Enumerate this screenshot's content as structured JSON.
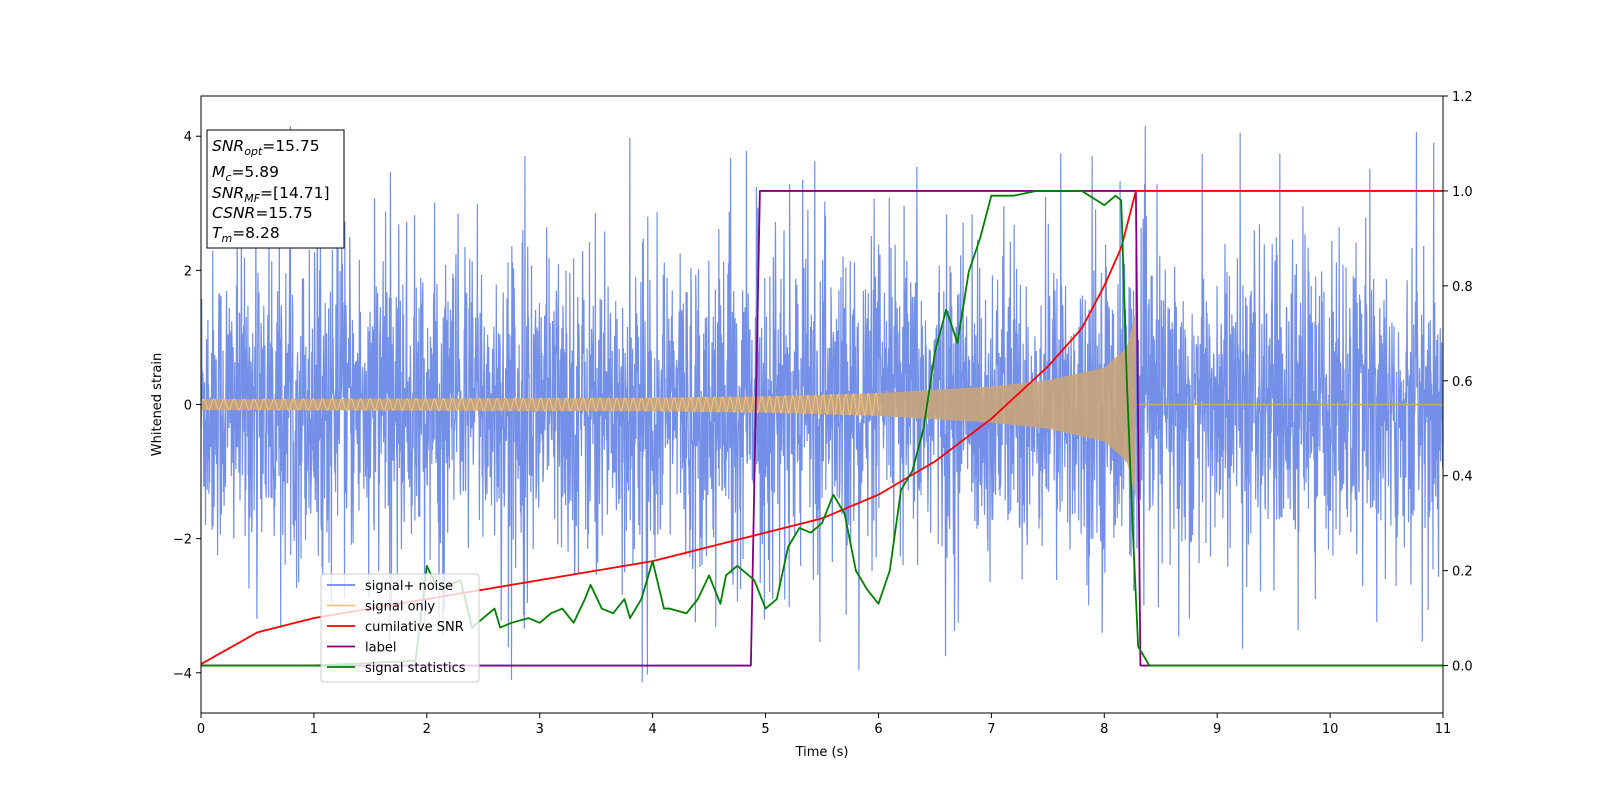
{
  "chart_data": {
    "type": "line",
    "xlabel": "Time (s)",
    "ylabel": "Whitened strain",
    "xlim": [
      0,
      11
    ],
    "ylim_left": [
      -4.6,
      4.6
    ],
    "ylim_right": [
      -0.1,
      1.2
    ],
    "x_ticks": [
      "0",
      "1",
      "2",
      "3",
      "4",
      "5",
      "6",
      "7",
      "8",
      "9",
      "10",
      "11"
    ],
    "y_left_ticks": [
      "−4",
      "−2",
      "0",
      "2",
      "4"
    ],
    "y_right_ticks": [
      "0.0",
      "0.2",
      "0.4",
      "0.6",
      "0.8",
      "1.0",
      "1.2"
    ],
    "grid": false,
    "legend_position": "lower-left",
    "info_box": {
      "snr_opt": {
        "base": "SNR",
        "sub": "opt",
        "value": "=15.75"
      },
      "mc": {
        "base": "M",
        "sub": "c",
        "value": "=5.89"
      },
      "snr_mf": {
        "base": "SNR",
        "sub": "MF",
        "value": "=[14.71]"
      },
      "csnr": {
        "base": "CSNR",
        "sub": "",
        "value": "=15.75"
      },
      "tm": {
        "base": "T",
        "sub": "m",
        "value": "=8.28"
      }
    },
    "merger_time": 8.28,
    "series": [
      {
        "name": "signal+ noise",
        "axis": "left",
        "color": "#6b89e6",
        "noise_typical_abs": 1.3,
        "noise_peak_abs": 4.15
      },
      {
        "name": "signal only",
        "axis": "left",
        "color": "#f5c27c",
        "envelope": {
          "t": [
            0,
            2,
            4,
            5,
            6,
            7,
            7.5,
            8.0,
            8.2,
            8.28,
            8.29,
            11
          ],
          "amplitude": [
            0.08,
            0.09,
            0.1,
            0.12,
            0.17,
            0.27,
            0.36,
            0.55,
            0.85,
            1.4,
            0.0,
            0.0
          ]
        }
      },
      {
        "name": "cumilative SNR",
        "axis": "right",
        "color": "#ff0000",
        "t": [
          0,
          0.5,
          1,
          2,
          3,
          4,
          5,
          5.5,
          6,
          6.5,
          7,
          7.5,
          7.8,
          8.0,
          8.15,
          8.28,
          8.29,
          11
        ],
        "y": [
          0.003,
          0.07,
          0.1,
          0.14,
          0.18,
          0.22,
          0.28,
          0.31,
          0.36,
          0.43,
          0.52,
          0.63,
          0.71,
          0.8,
          0.88,
          1.0,
          1.0,
          1.0
        ]
      },
      {
        "name": "label",
        "axis": "right",
        "color": "#800080",
        "t": [
          0,
          4.87,
          4.95,
          8.28,
          8.32,
          11
        ],
        "y": [
          0,
          0,
          1,
          1,
          0,
          0
        ]
      },
      {
        "name": "signal statistics",
        "axis": "right",
        "color": "#008000",
        "t": [
          0,
          1.0,
          1.9,
          2.0,
          2.1,
          2.3,
          2.4,
          2.6,
          2.65,
          2.75,
          2.9,
          3.0,
          3.1,
          3.2,
          3.3,
          3.4,
          3.45,
          3.55,
          3.65,
          3.75,
          3.8,
          3.9,
          4.0,
          4.1,
          4.15,
          4.3,
          4.4,
          4.5,
          4.6,
          4.65,
          4.75,
          4.8,
          4.9,
          5.0,
          5.1,
          5.2,
          5.3,
          5.4,
          5.5,
          5.6,
          5.7,
          5.8,
          5.9,
          6.0,
          6.1,
          6.2,
          6.3,
          6.4,
          6.5,
          6.6,
          6.7,
          6.8,
          6.9,
          7.0,
          7.2,
          7.4,
          7.6,
          7.8,
          8.0,
          8.1,
          8.15,
          8.2,
          8.25,
          8.3,
          8.4,
          8.5,
          9.0,
          10.0,
          11.0
        ],
        "y": [
          0,
          0.0,
          0.01,
          0.21,
          0.16,
          0.18,
          0.08,
          0.12,
          0.08,
          0.09,
          0.1,
          0.09,
          0.11,
          0.12,
          0.09,
          0.14,
          0.17,
          0.12,
          0.11,
          0.14,
          0.1,
          0.14,
          0.22,
          0.12,
          0.12,
          0.11,
          0.14,
          0.19,
          0.13,
          0.19,
          0.21,
          0.2,
          0.18,
          0.12,
          0.14,
          0.25,
          0.29,
          0.28,
          0.3,
          0.36,
          0.32,
          0.2,
          0.16,
          0.13,
          0.2,
          0.37,
          0.41,
          0.5,
          0.66,
          0.75,
          0.68,
          0.83,
          0.9,
          0.99,
          0.99,
          1.0,
          1.0,
          1.0,
          0.97,
          0.99,
          0.98,
          0.6,
          0.3,
          0.04,
          0.0,
          0.0,
          0.0,
          0.0,
          0.0
        ]
      }
    ]
  }
}
